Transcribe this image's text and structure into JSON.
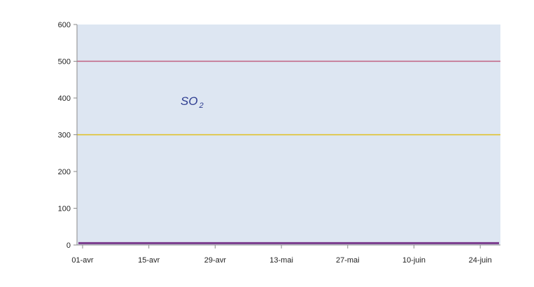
{
  "chart_data": {
    "type": "line",
    "title": "",
    "xlabel": "",
    "ylabel": "",
    "ylim": [
      0,
      600
    ],
    "y_ticks": [
      0,
      100,
      200,
      300,
      400,
      500,
      600
    ],
    "y_tick_labels": [
      "0",
      "100",
      "200",
      "300",
      "400",
      "500",
      "600"
    ],
    "x_ticks": [
      "01-avr",
      "15-avr",
      "29-avr",
      "13-mai",
      "27-mai",
      "10-juin",
      "24-juin"
    ],
    "x_range": [
      "01-avr",
      "30-juin"
    ],
    "annotation": {
      "text": "SO",
      "subscript": "2"
    },
    "series": [
      {
        "values": [
          5,
          5,
          5,
          5,
          5,
          5,
          5
        ],
        "color": "#7a3a8c"
      }
    ],
    "reference_lines": [
      {
        "value": 500,
        "color": "#c06080"
      },
      {
        "value": 300,
        "color": "#e0c020"
      }
    ],
    "grid": false,
    "legend": "none",
    "plot_background": "#dde6f2",
    "colors": {
      "axis": "#8a8a8a",
      "tick_text": "#222222",
      "annotation": "#2b3a8f"
    }
  }
}
